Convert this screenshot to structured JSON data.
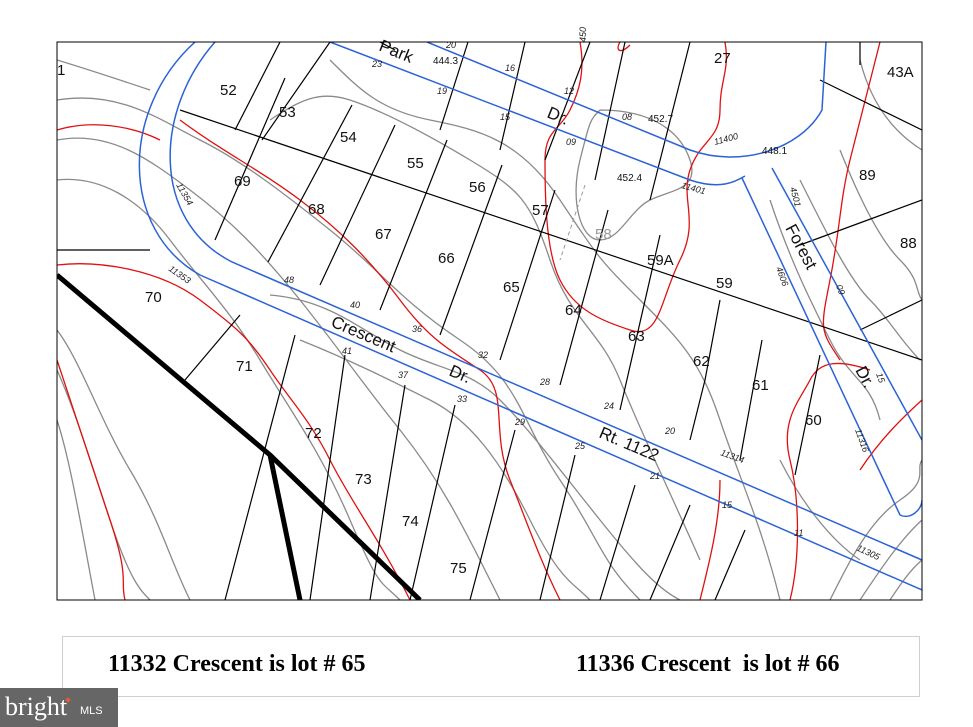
{
  "map": {
    "lots": [
      "1",
      "52",
      "53",
      "54",
      "55",
      "56",
      "57",
      "58",
      "59A",
      "59",
      "27",
      "43A",
      "89",
      "88",
      "69",
      "68",
      "67",
      "66",
      "65",
      "64",
      "63",
      "62",
      "61",
      "60",
      "70",
      "71",
      "72",
      "73",
      "74",
      "75"
    ],
    "streets": {
      "park": "Park",
      "park_dr": "Dr.",
      "crescent": "Crescent",
      "crescent_dr": "Dr.",
      "route": "Rt. 1122",
      "forest": "Forest",
      "forest_dr": "Dr."
    },
    "elevations": [
      "444.3",
      "452.7",
      "452.4",
      "448.1"
    ],
    "addresses": [
      "11400",
      "11401",
      "11354",
      "11353",
      "4501",
      "4606",
      "11314",
      "11305",
      "11316",
      "450"
    ],
    "house_numbers": [
      "20",
      "23",
      "19",
      "16",
      "12",
      "15",
      "09",
      "08",
      "48",
      "40",
      "36",
      "41",
      "32",
      "37",
      "33",
      "28",
      "24",
      "29",
      "25",
      "20",
      "21",
      "15",
      "11",
      "15",
      "09"
    ],
    "colors": {
      "road": "#2b63d6",
      "lot_line": "#000000",
      "contour_major": "#e01010",
      "contour_minor": "#8a8a8a"
    }
  },
  "caption": {
    "left": "11332 Crescent is lot # 65",
    "right": "11336 Crescent  is lot # 66"
  },
  "watermark": {
    "brand": "bright",
    "suffix": "MLS"
  }
}
